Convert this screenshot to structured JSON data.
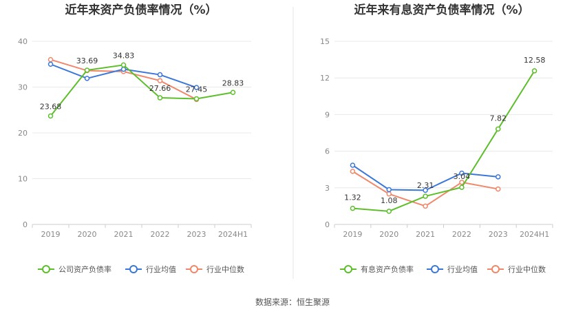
{
  "source_label": "数据来源：恒生聚源",
  "colors": {
    "company": "#5cbf2a",
    "average": "#3a77d9",
    "median": "#f0876a",
    "grid": "#e8e8e8",
    "axis": "#cccccc",
    "divider": "#e6e6e6"
  },
  "chart_data": [
    {
      "type": "line",
      "title": "近年来资产负债率情况（%）",
      "categories": [
        "2019",
        "2020",
        "2021",
        "2022",
        "2023",
        "2024H1"
      ],
      "ylim": [
        0,
        40
      ],
      "yticks": [
        0,
        10,
        20,
        30,
        40
      ],
      "grid": true,
      "legend_position": "bottom",
      "series": [
        {
          "name": "公司资产负债率",
          "key": "company",
          "values": [
            23.68,
            33.69,
            34.83,
            27.66,
            27.45,
            28.83
          ],
          "labels": [
            "23.68",
            "33.69",
            "34.83",
            "27.66",
            "27.45",
            "28.83"
          ]
        },
        {
          "name": "行业均值",
          "key": "average",
          "values": [
            35.0,
            31.9,
            33.9,
            32.7,
            29.9,
            null
          ]
        },
        {
          "name": "行业中位数",
          "key": "median",
          "values": [
            36.0,
            33.6,
            33.4,
            31.4,
            27.3,
            null
          ]
        }
      ]
    },
    {
      "type": "line",
      "title": "近年来有息资产负债率情况（%）",
      "categories": [
        "2019",
        "2020",
        "2021",
        "2022",
        "2023",
        "2024H1"
      ],
      "ylim": [
        0,
        15
      ],
      "yticks": [
        0,
        3,
        6,
        9,
        12,
        15
      ],
      "grid": true,
      "legend_position": "bottom",
      "series": [
        {
          "name": "有息资产负债率",
          "key": "company",
          "values": [
            1.32,
            1.08,
            2.31,
            3.04,
            7.82,
            12.58
          ],
          "labels": [
            "1.32",
            "1.08",
            "2.31",
            "3.04",
            "7.82",
            "12.58"
          ]
        },
        {
          "name": "行业均值",
          "key": "average",
          "values": [
            4.85,
            2.85,
            2.8,
            4.2,
            3.9,
            null
          ]
        },
        {
          "name": "行业中位数",
          "key": "median",
          "values": [
            4.35,
            2.5,
            1.5,
            3.45,
            2.9,
            null
          ]
        }
      ]
    }
  ]
}
